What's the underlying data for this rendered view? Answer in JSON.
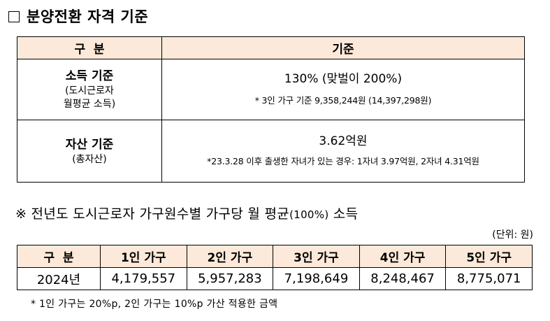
{
  "section1": {
    "marker": "□",
    "title": "분양전환 자격 기준"
  },
  "criteria_table": {
    "header": {
      "col1": "구  분",
      "col2": "기준"
    },
    "income": {
      "label": "소득 기준",
      "sub1": "(도시근로자",
      "sub2": "월평균 소득)",
      "value": "130% (맞벌이 200%)",
      "note": "* 3인 가구 기준 9,358,244원 (14,397,298원)"
    },
    "asset": {
      "label": "자산 기준",
      "sub1": "(총자산)",
      "value": "3.62억원",
      "note": "*23.3.28 이후 출생한 자녀가 있는 경우: 1자녀 3.97억원, 2자녀 4.31억원"
    }
  },
  "section2": {
    "title": "※ 전년도 도시근로자 가구원수별 가구당 월 평균",
    "title_pct": "(100%)",
    "title_tail": " 소득",
    "unit": "(단위: 원)"
  },
  "income_table": {
    "headers": [
      "구  분",
      "1인 가구",
      "2인 가구",
      "3인 가구",
      "4인 가구",
      "5인 가구"
    ],
    "row": [
      "2024년",
      "4,179,557",
      "5,957,283",
      "7,198,649",
      "8,248,467",
      "8,775,071"
    ]
  },
  "footnote": "* 1인 가구는 20%p, 2인 가구는 10%p 가산 적용한 금액"
}
